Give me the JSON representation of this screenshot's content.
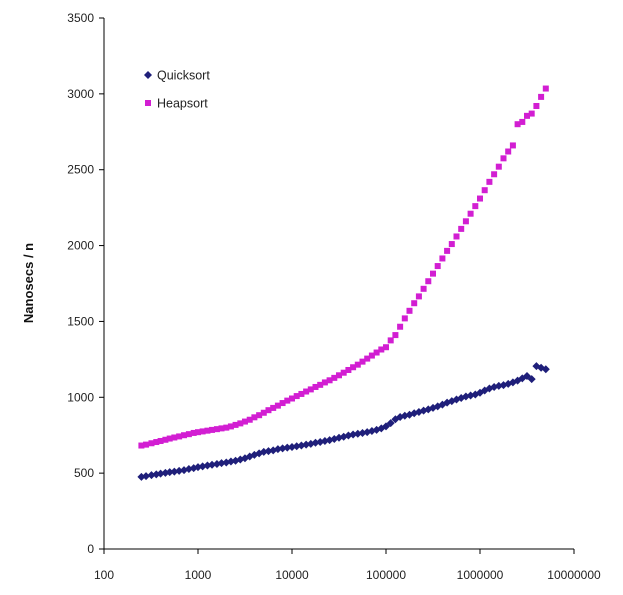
{
  "chart_data": {
    "type": "scatter",
    "title": "",
    "xlabel": "",
    "ylabel": "Nanosecs / n",
    "x_scale": "log",
    "xlim": [
      100,
      10000000
    ],
    "ylim": [
      0,
      3500
    ],
    "x_ticks": [
      "100",
      "1000",
      "10000",
      "100000",
      "1000000",
      "10000000"
    ],
    "y_ticks": [
      "0",
      "500",
      "1000",
      "1500",
      "2000",
      "2500",
      "3000",
      "3500"
    ],
    "grid": false,
    "legend_position": "top-left",
    "series": [
      {
        "name": "Quicksort",
        "color": "#1f1f7a",
        "marker": "diamond",
        "points": [
          [
            250,
            475
          ],
          [
            280,
            480
          ],
          [
            320,
            487
          ],
          [
            360,
            492
          ],
          [
            400,
            497
          ],
          [
            450,
            502
          ],
          [
            500,
            507
          ],
          [
            560,
            510
          ],
          [
            630,
            515
          ],
          [
            710,
            520
          ],
          [
            800,
            527
          ],
          [
            900,
            533
          ],
          [
            1000,
            540
          ],
          [
            1120,
            545
          ],
          [
            1260,
            550
          ],
          [
            1410,
            555
          ],
          [
            1590,
            560
          ],
          [
            1780,
            566
          ],
          [
            2000,
            570
          ],
          [
            2240,
            577
          ],
          [
            2510,
            582
          ],
          [
            2820,
            590
          ],
          [
            3160,
            598
          ],
          [
            3550,
            610
          ],
          [
            3980,
            620
          ],
          [
            4470,
            630
          ],
          [
            5010,
            640
          ],
          [
            5620,
            645
          ],
          [
            6310,
            650
          ],
          [
            7080,
            658
          ],
          [
            7940,
            663
          ],
          [
            8910,
            668
          ],
          [
            10000,
            672
          ],
          [
            11220,
            677
          ],
          [
            12590,
            682
          ],
          [
            14130,
            688
          ],
          [
            15850,
            693
          ],
          [
            17780,
            700
          ],
          [
            19950,
            705
          ],
          [
            22390,
            712
          ],
          [
            25120,
            718
          ],
          [
            28180,
            725
          ],
          [
            31620,
            733
          ],
          [
            35480,
            740
          ],
          [
            39810,
            748
          ],
          [
            44670,
            755
          ],
          [
            50120,
            760
          ],
          [
            56230,
            765
          ],
          [
            63100,
            770
          ],
          [
            70790,
            778
          ],
          [
            79430,
            785
          ],
          [
            89130,
            795
          ],
          [
            100000,
            808
          ],
          [
            112200,
            830
          ],
          [
            125900,
            855
          ],
          [
            141300,
            870
          ],
          [
            158500,
            878
          ],
          [
            177800,
            885
          ],
          [
            199500,
            895
          ],
          [
            223900,
            903
          ],
          [
            251200,
            912
          ],
          [
            281800,
            920
          ],
          [
            316200,
            930
          ],
          [
            354800,
            940
          ],
          [
            398100,
            952
          ],
          [
            446700,
            965
          ],
          [
            501200,
            975
          ],
          [
            562300,
            985
          ],
          [
            631000,
            995
          ],
          [
            707900,
            1005
          ],
          [
            794300,
            1012
          ],
          [
            891300,
            1018
          ],
          [
            1000000,
            1030
          ],
          [
            1122000,
            1045
          ],
          [
            1259000,
            1058
          ],
          [
            1413000,
            1068
          ],
          [
            1585000,
            1075
          ],
          [
            1778000,
            1080
          ],
          [
            1995000,
            1088
          ],
          [
            2239000,
            1098
          ],
          [
            2512000,
            1110
          ],
          [
            2818000,
            1125
          ],
          [
            3162000,
            1140
          ],
          [
            3548000,
            1120
          ],
          [
            3981000,
            1205
          ],
          [
            4467000,
            1195
          ],
          [
            5012000,
            1185
          ]
        ]
      },
      {
        "name": "Heapsort",
        "color": "#d21ed2",
        "marker": "square",
        "points": [
          [
            250,
            682
          ],
          [
            280,
            688
          ],
          [
            320,
            697
          ],
          [
            360,
            705
          ],
          [
            400,
            712
          ],
          [
            450,
            720
          ],
          [
            500,
            728
          ],
          [
            560,
            735
          ],
          [
            630,
            742
          ],
          [
            710,
            750
          ],
          [
            800,
            757
          ],
          [
            900,
            765
          ],
          [
            1000,
            770
          ],
          [
            1120,
            775
          ],
          [
            1260,
            780
          ],
          [
            1410,
            785
          ],
          [
            1590,
            790
          ],
          [
            1780,
            795
          ],
          [
            2000,
            800
          ],
          [
            2240,
            808
          ],
          [
            2510,
            818
          ],
          [
            2820,
            828
          ],
          [
            3160,
            840
          ],
          [
            3550,
            852
          ],
          [
            3980,
            868
          ],
          [
            4470,
            882
          ],
          [
            5010,
            898
          ],
          [
            5620,
            915
          ],
          [
            6310,
            930
          ],
          [
            7080,
            945
          ],
          [
            7940,
            962
          ],
          [
            8910,
            978
          ],
          [
            10000,
            992
          ],
          [
            11220,
            1008
          ],
          [
            12590,
            1022
          ],
          [
            14130,
            1038
          ],
          [
            15850,
            1052
          ],
          [
            17780,
            1068
          ],
          [
            19950,
            1082
          ],
          [
            22390,
            1098
          ],
          [
            25120,
            1112
          ],
          [
            28180,
            1128
          ],
          [
            31620,
            1145
          ],
          [
            35480,
            1162
          ],
          [
            39810,
            1180
          ],
          [
            44670,
            1198
          ],
          [
            50120,
            1215
          ],
          [
            56230,
            1235
          ],
          [
            63100,
            1255
          ],
          [
            70790,
            1275
          ],
          [
            79430,
            1295
          ],
          [
            89130,
            1315
          ],
          [
            100000,
            1330
          ],
          [
            112200,
            1375
          ],
          [
            125900,
            1410
          ],
          [
            141300,
            1465
          ],
          [
            158500,
            1520
          ],
          [
            177800,
            1570
          ],
          [
            199500,
            1620
          ],
          [
            223900,
            1665
          ],
          [
            251200,
            1715
          ],
          [
            281800,
            1765
          ],
          [
            316200,
            1815
          ],
          [
            354800,
            1865
          ],
          [
            398100,
            1915
          ],
          [
            446700,
            1965
          ],
          [
            501200,
            2010
          ],
          [
            562300,
            2060
          ],
          [
            631000,
            2110
          ],
          [
            707900,
            2160
          ],
          [
            794300,
            2210
          ],
          [
            891300,
            2260
          ],
          [
            1000000,
            2310
          ],
          [
            1122000,
            2365
          ],
          [
            1259000,
            2420
          ],
          [
            1413000,
            2470
          ],
          [
            1585000,
            2520
          ],
          [
            1778000,
            2575
          ],
          [
            1995000,
            2620
          ],
          [
            2239000,
            2660
          ],
          [
            2512000,
            2800
          ],
          [
            2818000,
            2815
          ],
          [
            3162000,
            2855
          ],
          [
            3548000,
            2870
          ],
          [
            3981000,
            2920
          ],
          [
            4467000,
            2980
          ],
          [
            5012000,
            3035
          ]
        ]
      }
    ]
  }
}
